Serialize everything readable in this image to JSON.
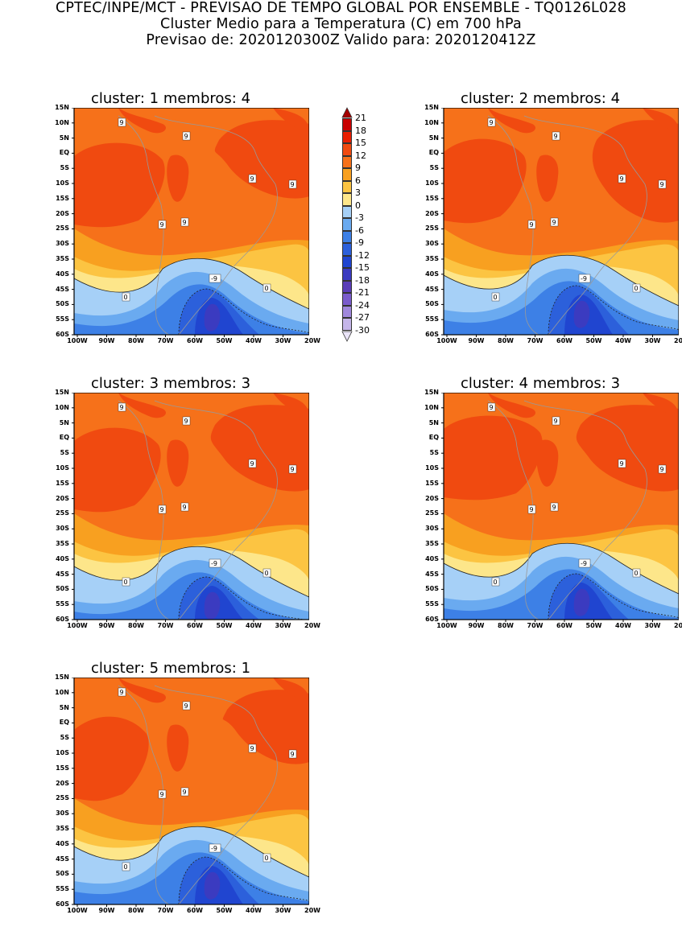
{
  "header": {
    "line1": "CPTEC/INPE/MCT - PREVISAO DE TEMPO GLOBAL POR ENSEMBLE - TQ0126L028",
    "line2": "Cluster Medio para a Temperatura (C) em 700 hPa",
    "line3": "Previsao de: 2020120300Z    Valido para: 2020120412Z"
  },
  "axes": {
    "lat_labels": [
      "15N",
      "10N",
      "5N",
      "EQ",
      "5S",
      "10S",
      "15S",
      "20S",
      "25S",
      "30S",
      "35S",
      "40S",
      "45S",
      "50S",
      "55S",
      "60S"
    ],
    "lon_labels": [
      "100W",
      "90W",
      "80W",
      "70W",
      "60W",
      "50W",
      "40W",
      "30W",
      "20W"
    ]
  },
  "panels": [
    {
      "title": "cluster: 1   membros: 4",
      "contour_labels": [
        "9",
        "9",
        "9",
        "9",
        "9",
        "9",
        "0",
        "0",
        "-9"
      ]
    },
    {
      "title": "cluster: 2   membros: 4",
      "contour_labels": [
        "9",
        "9",
        "9",
        "9",
        "9",
        "9",
        "0",
        "0",
        "-9"
      ]
    },
    {
      "title": "cluster: 3   membros: 3",
      "contour_labels": [
        "9",
        "9",
        "9",
        "9",
        "9",
        "9",
        "0",
        "0",
        "-9"
      ]
    },
    {
      "title": "cluster: 4   membros: 3",
      "contour_labels": [
        "9",
        "9",
        "9",
        "9",
        "9",
        "9",
        "0",
        "0",
        "-9"
      ]
    },
    {
      "title": "cluster: 5   membros: 1",
      "contour_labels": [
        "9",
        "9",
        "9",
        "9",
        "9",
        "9",
        "0",
        "0",
        "-9"
      ]
    }
  ],
  "legend": {
    "labels": [
      "21",
      "18",
      "15",
      "12",
      "9",
      "6",
      "3",
      "0",
      "-3",
      "-6",
      "-9",
      "-12",
      "-15",
      "-18",
      "-21",
      "-24",
      "-27",
      "-30"
    ],
    "colors": [
      "#a50000",
      "#c80000",
      "#e81e00",
      "#f04a10",
      "#f6711a",
      "#f8a020",
      "#fcc442",
      "#fde68a",
      "#a6d0f7",
      "#6aaaf0",
      "#3d80e6",
      "#2c60db",
      "#2045d0",
      "#3b3bc0",
      "#5a3db8",
      "#7a5ccc",
      "#a088dd",
      "#c5b6ea",
      "#eae4f8"
    ]
  }
}
